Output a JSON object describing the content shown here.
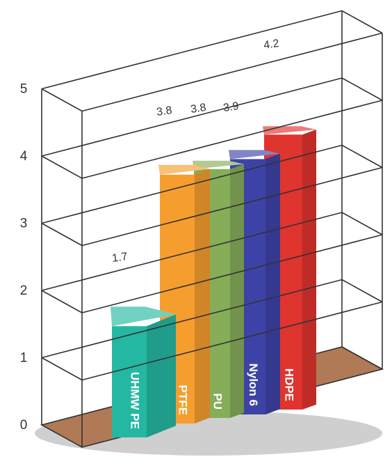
{
  "chart_data": {
    "type": "bar",
    "title": "",
    "xlabel": "",
    "ylabel": "",
    "ylim": [
      0,
      5
    ],
    "yticks": [
      "0",
      "1",
      "2",
      "3",
      "4",
      "5"
    ],
    "grid": true,
    "categories": [
      "UHMW PE",
      "PTFE",
      "PU",
      "Nylon 6",
      "HDPE"
    ],
    "values": [
      1.7,
      3.8,
      3.8,
      3.9,
      4.2
    ],
    "value_labels": [
      "1.7",
      "3.8",
      "3.8",
      "3.9",
      "4.2"
    ],
    "colors": [
      "#24b8a2",
      "#f59e2e",
      "#86ad58",
      "#3d43a6",
      "#e0342f"
    ]
  }
}
